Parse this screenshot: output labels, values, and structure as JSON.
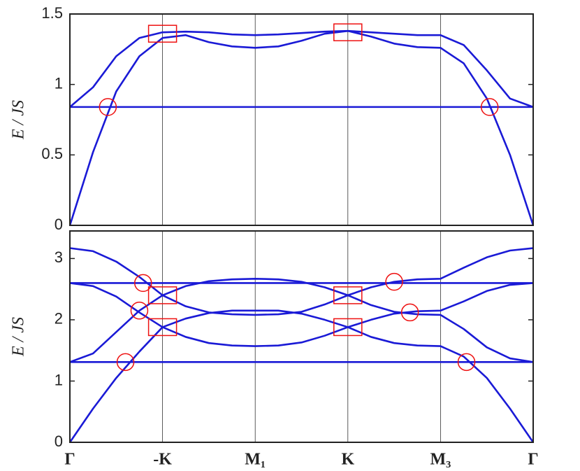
{
  "chart_data": [
    {
      "type": "line",
      "y_label": "E / JS",
      "x": [
        0,
        0.25,
        0.5,
        0.75,
        1,
        1.25,
        1.5,
        1.75,
        2,
        2.25,
        2.5,
        2.75,
        3,
        3.25,
        3.5,
        3.75,
        4,
        4.25,
        4.5,
        4.75,
        5
      ],
      "color": "#1a1ad6",
      "marker_color": "#ee1111",
      "series": [
        {
          "values": [
            0.84,
            0.84,
            0.84,
            0.84,
            0.84,
            0.84,
            0.84,
            0.84,
            0.84,
            0.84,
            0.84,
            0.84,
            0.84,
            0.84,
            0.84,
            0.84,
            0.84,
            0.84,
            0.84,
            0.84,
            0.84
          ]
        },
        {
          "values": [
            0.84,
            0.98,
            1.2,
            1.33,
            1.37,
            1.375,
            1.37,
            1.355,
            1.35,
            1.355,
            1.365,
            1.375,
            1.38,
            1.37,
            1.36,
            1.35,
            1.35,
            1.28,
            1.1,
            0.9,
            0.84
          ]
        },
        {
          "values": [
            0,
            0.52,
            0.95,
            1.2,
            1.33,
            1.35,
            1.3,
            1.27,
            1.26,
            1.27,
            1.31,
            1.36,
            1.38,
            1.34,
            1.29,
            1.265,
            1.26,
            1.15,
            0.9,
            0.5,
            0
          ]
        }
      ],
      "circles": {
        "x": [
          0.41,
          4.53
        ],
        "y": [
          0.84,
          0.84
        ]
      },
      "squares": {
        "x": [
          1,
          3
        ],
        "y": [
          1.36,
          1.37
        ]
      },
      "xlim": [
        0,
        5
      ],
      "ylim": [
        0,
        1.5
      ],
      "yticks": [
        0,
        0.5,
        1,
        1.5
      ]
    },
    {
      "type": "line",
      "y_label": "E / JS",
      "x": [
        0,
        0.25,
        0.5,
        0.75,
        1,
        1.25,
        1.5,
        1.75,
        2,
        2.25,
        2.5,
        2.75,
        3,
        3.25,
        3.5,
        3.75,
        4,
        4.25,
        4.5,
        4.75,
        5
      ],
      "color": "#1a1ad6",
      "marker_color": "#ee1111",
      "series": [
        {
          "values": [
            2.6,
            2.6,
            2.6,
            2.6,
            2.6,
            2.6,
            2.6,
            2.6,
            2.6,
            2.6,
            2.6,
            2.6,
            2.6,
            2.6,
            2.6,
            2.6,
            2.6,
            2.6,
            2.6,
            2.6,
            2.6
          ]
        },
        {
          "values": [
            1.31,
            1.31,
            1.31,
            1.31,
            1.31,
            1.31,
            1.31,
            1.31,
            1.31,
            1.31,
            1.31,
            1.31,
            1.31,
            1.31,
            1.31,
            1.31,
            1.31,
            1.31,
            1.31,
            1.31,
            1.31
          ]
        },
        {
          "values": [
            3.17,
            3.12,
            2.95,
            2.7,
            2.4,
            2.22,
            2.12,
            2.09,
            2.08,
            2.09,
            2.13,
            2.25,
            2.4,
            2.53,
            2.62,
            2.66,
            2.67,
            2.85,
            3.02,
            3.13,
            3.17
          ]
        },
        {
          "values": [
            2.6,
            2.55,
            2.38,
            2.12,
            1.88,
            1.72,
            1.62,
            1.58,
            1.57,
            1.58,
            1.63,
            1.74,
            1.88,
            2.0,
            2.1,
            2.14,
            2.15,
            2.3,
            2.47,
            2.57,
            2.6
          ]
        },
        {
          "values": [
            1.31,
            1.45,
            1.8,
            2.15,
            2.4,
            2.55,
            2.63,
            2.66,
            2.67,
            2.66,
            2.62,
            2.53,
            2.4,
            2.24,
            2.13,
            2.09,
            2.08,
            1.85,
            1.55,
            1.37,
            1.31
          ]
        },
        {
          "values": [
            0,
            0.55,
            1.05,
            1.48,
            1.88,
            2.02,
            2.11,
            2.15,
            2.15,
            2.15,
            2.1,
            2.0,
            1.88,
            1.72,
            1.62,
            1.58,
            1.57,
            1.4,
            1.05,
            0.55,
            0
          ]
        }
      ],
      "circles": {
        "x": [
          0.79,
          0.75,
          0.6,
          3.5,
          3.67,
          4.28
        ],
        "y": [
          2.6,
          2.15,
          1.31,
          2.62,
          2.12,
          1.31
        ]
      },
      "squares": {
        "x": [
          1,
          1,
          3,
          3
        ],
        "y": [
          2.4,
          1.88,
          2.4,
          1.88
        ]
      },
      "xlim": [
        0,
        5
      ],
      "ylim": [
        0,
        3.45
      ],
      "yticks": [
        0,
        1,
        2,
        3
      ],
      "xticks": [
        {
          "value": 0,
          "label": "Γ"
        },
        {
          "value": 1,
          "label": "-K"
        },
        {
          "value": 2,
          "label": "M₁"
        },
        {
          "value": 3,
          "label": "K"
        },
        {
          "value": 4,
          "label": "M₃"
        },
        {
          "value": 5,
          "label": "Γ"
        }
      ]
    }
  ]
}
